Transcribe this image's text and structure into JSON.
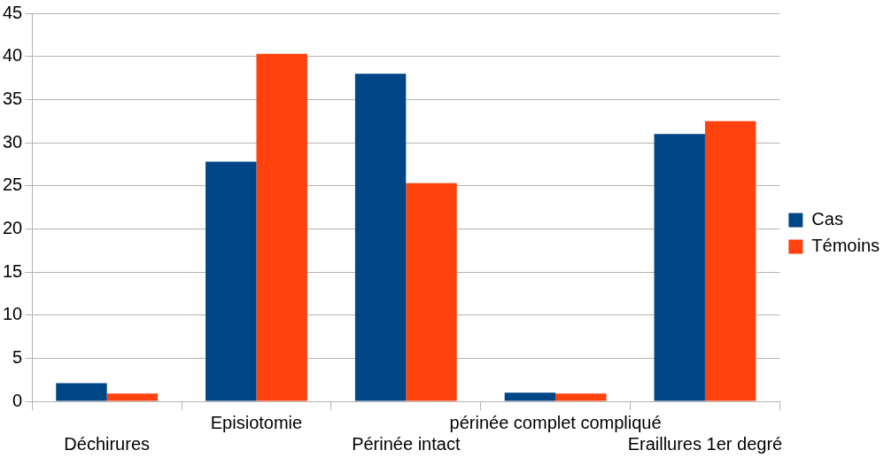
{
  "chart_data": {
    "type": "bar",
    "categories": [
      "Déchirures",
      "Episiotomie",
      "Périnée intact",
      "périnée complet compliqué",
      "Eraillures 1er degré"
    ],
    "series": [
      {
        "name": "Cas",
        "color": "#004586",
        "values": [
          2.1,
          27.8,
          38,
          1,
          31
        ]
      },
      {
        "name": "Témoins",
        "color": "#ff420e",
        "values": [
          0.9,
          40.3,
          25.3,
          0.9,
          32.5
        ]
      }
    ],
    "ylim": [
      0,
      45
    ],
    "yticks": [
      0,
      5,
      10,
      15,
      20,
      25,
      30,
      35,
      40,
      45
    ],
    "grid": "y",
    "legend": "right"
  }
}
